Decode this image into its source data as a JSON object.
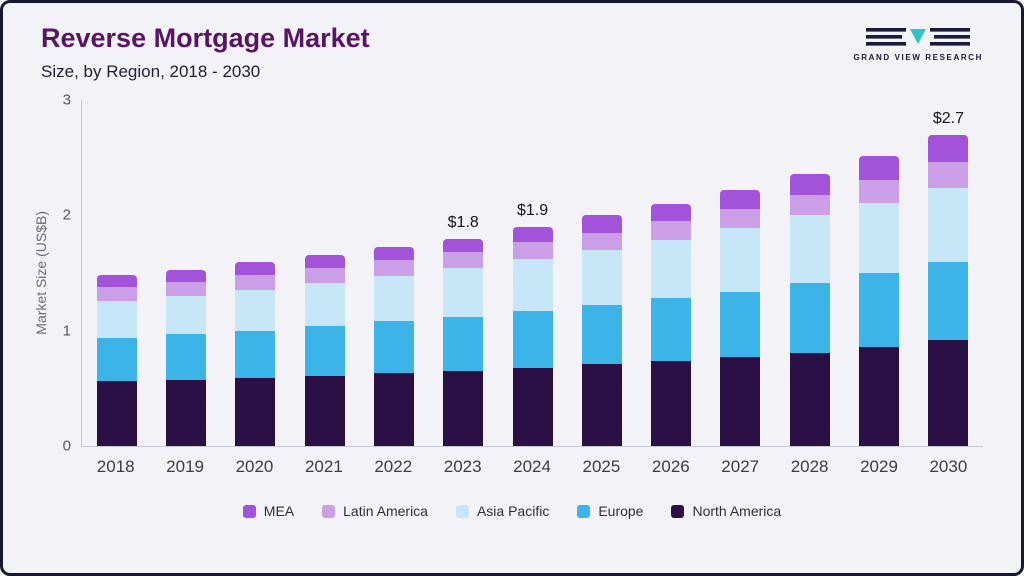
{
  "header": {
    "title": "Reverse Mortgage Market",
    "subtitle": "Size, by Region, 2018 - 2030"
  },
  "logo": {
    "text": "GRAND VIEW RESEARCH",
    "accent_color": "#2fc4c9",
    "dark_color": "#1a1a38"
  },
  "chart_data": {
    "type": "bar",
    "stacked": true,
    "title": "Reverse Mortgage Market Size, by Region, 2018 - 2030",
    "xlabel": "",
    "ylabel": "Market Size (US$B)",
    "ylim": [
      0,
      3
    ],
    "yticks": [
      0,
      1,
      2,
      3
    ],
    "grid": false,
    "legend_position": "bottom",
    "categories": [
      "2018",
      "2019",
      "2020",
      "2021",
      "2022",
      "2023",
      "2024",
      "2025",
      "2026",
      "2027",
      "2028",
      "2029",
      "2030"
    ],
    "series": [
      {
        "name": "North America",
        "key": "north-america",
        "color": "#2b1045",
        "values": [
          0.56,
          0.57,
          0.59,
          0.61,
          0.63,
          0.65,
          0.68,
          0.71,
          0.74,
          0.77,
          0.81,
          0.86,
          0.92
        ]
      },
      {
        "name": "Europe",
        "key": "europe",
        "color": "#3cb4e7",
        "values": [
          0.38,
          0.4,
          0.41,
          0.43,
          0.45,
          0.47,
          0.49,
          0.51,
          0.54,
          0.57,
          0.6,
          0.64,
          0.68
        ]
      },
      {
        "name": "Asia Pacific",
        "key": "asia-pacific",
        "color": "#c7e7f8",
        "values": [
          0.32,
          0.33,
          0.35,
          0.37,
          0.39,
          0.42,
          0.45,
          0.48,
          0.51,
          0.55,
          0.59,
          0.61,
          0.64
        ]
      },
      {
        "name": "Latin America",
        "key": "latin-america",
        "color": "#cb9fe8",
        "values": [
          0.12,
          0.12,
          0.13,
          0.13,
          0.14,
          0.14,
          0.15,
          0.15,
          0.16,
          0.17,
          0.18,
          0.2,
          0.22
        ]
      },
      {
        "name": "MEA",
        "key": "mea",
        "color": "#a253d9",
        "values": [
          0.1,
          0.11,
          0.12,
          0.12,
          0.12,
          0.12,
          0.13,
          0.15,
          0.15,
          0.16,
          0.18,
          0.2,
          0.24
        ]
      }
    ],
    "totals": [
      1.48,
      1.53,
      1.6,
      1.66,
      1.73,
      1.8,
      1.9,
      2.0,
      2.1,
      2.22,
      2.36,
      2.51,
      2.7
    ],
    "annotations": [
      {
        "category": "2023",
        "label": "$1.8"
      },
      {
        "category": "2024",
        "label": "$1.9"
      },
      {
        "category": "2030",
        "label": "$2.7"
      }
    ],
    "legend": [
      {
        "label": "MEA",
        "color": "#a253d9"
      },
      {
        "label": "Latin America",
        "color": "#cb9fe8"
      },
      {
        "label": "Asia Pacific",
        "color": "#c7e7f8"
      },
      {
        "label": "Europe",
        "color": "#3cb4e7"
      },
      {
        "label": "North America",
        "color": "#2b1045"
      }
    ]
  }
}
